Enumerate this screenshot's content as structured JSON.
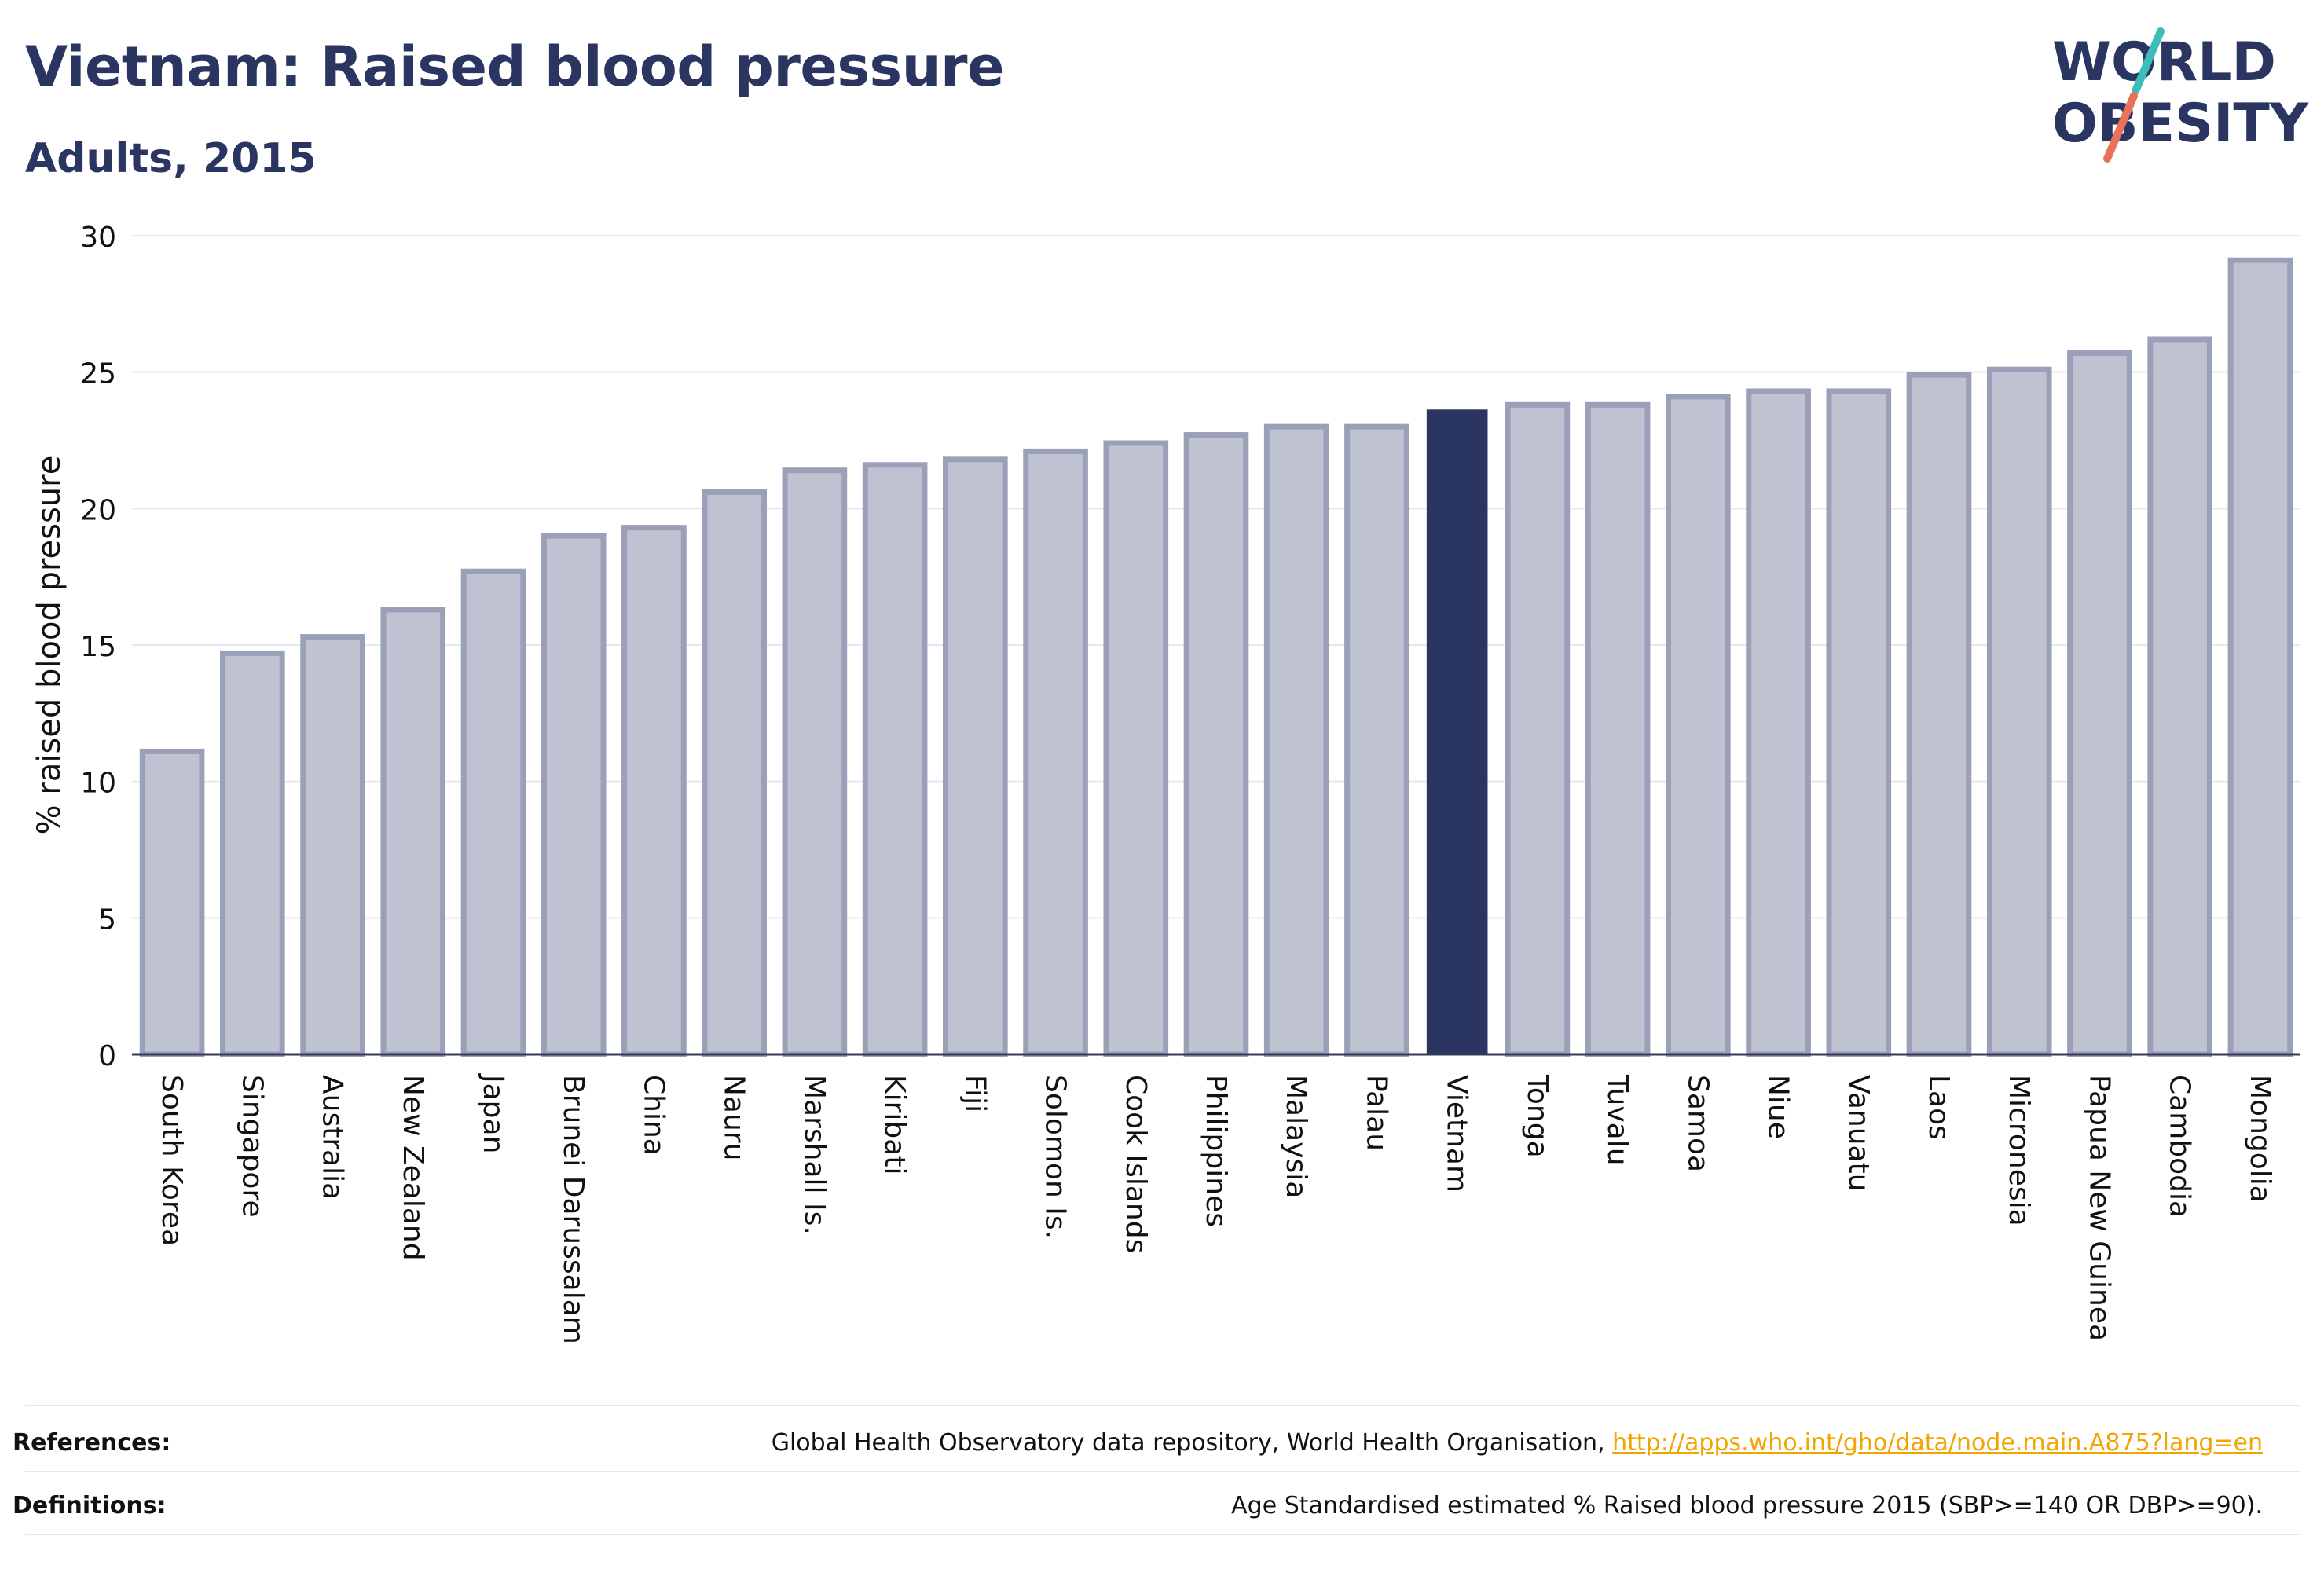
{
  "header": {
    "title": "Vietnam: Raised blood pressure",
    "subtitle": "Adults, 2015"
  },
  "logo": {
    "line1": "WORLD",
    "line2": "OBESITY"
  },
  "colors": {
    "highlight": "#2b3561",
    "bar_fill": "#bfc2d1",
    "bar_stroke": "#9aa0b8",
    "title": "#2b3561",
    "link": "#f0a500",
    "logo_teal": "#3dbdb8",
    "logo_coral": "#e8735a"
  },
  "chart_data": {
    "type": "bar",
    "ylabel": "% raised blood pressure",
    "xlabel": "",
    "ylim": [
      0,
      30
    ],
    "yticks": [
      0,
      5,
      10,
      15,
      20,
      25,
      30
    ],
    "grid": true,
    "highlight_category": "Vietnam",
    "categories": [
      "South Korea",
      "Singapore",
      "Australia",
      "New Zealand",
      "Japan",
      "Brunei Darussalam",
      "China",
      "Nauru",
      "Marshall Is.",
      "Kiribati",
      "Fiji",
      "Solomon Is.",
      "Cook Islands",
      "Philippines",
      "Malaysia",
      "Palau",
      "Vietnam",
      "Tonga",
      "Tuvalu",
      "Samoa",
      "Niue",
      "Vanuatu",
      "Laos",
      "Micronesia",
      "Papua New Guinea",
      "Cambodia",
      "Mongolia"
    ],
    "values": [
      11.1,
      14.7,
      15.3,
      16.3,
      17.7,
      19.0,
      19.3,
      20.6,
      21.4,
      21.6,
      21.8,
      22.1,
      22.4,
      22.7,
      23.0,
      23.0,
      23.6,
      23.8,
      23.8,
      24.1,
      24.3,
      24.3,
      24.9,
      25.1,
      25.7,
      26.2,
      29.1
    ]
  },
  "footer": {
    "references_label": "References:",
    "references_text": "Global Health Observatory data repository, World Health Organisation, ",
    "references_link": "http://apps.who.int/gho/data/node.main.A875?lang=en",
    "definitions_label": "Definitions:",
    "definitions_text": "Age Standardised estimated % Raised blood pressure 2015 (SBP>=140 OR DBP>=90)."
  }
}
